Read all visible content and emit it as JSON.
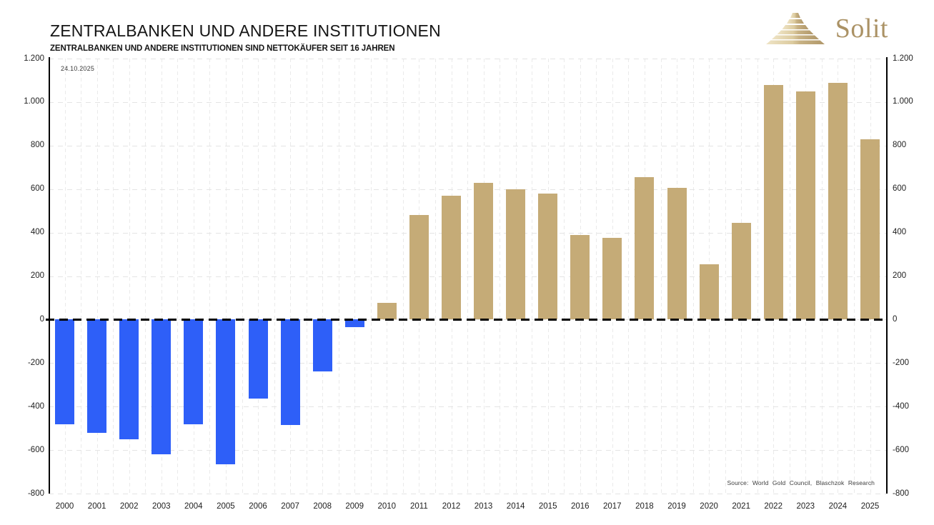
{
  "header": {
    "title": "ZENTRALBANKEN UND ANDERE INSTITUTIONEN",
    "subtitle": "ZENTRALBANKEN UND ANDERE INSTITUTIONEN SIND NETTOKÄUFER SEIT 16 JAHREN",
    "logo": {
      "text": "Solit",
      "icon": "stepped-pyramid-icon",
      "text_color": "#ab9265"
    }
  },
  "annotations": {
    "date_label": "24.10.2025",
    "source_label": "Source: World Gold Council, Blaschzok Research"
  },
  "chart_data": {
    "type": "bar",
    "title": "ZENTRALBANKEN UND ANDERE INSTITUTIONEN",
    "subtitle": "ZENTRALBANKEN UND ANDERE INSTITUTIONEN SIND NETTOKÄUFER SEIT 16 JAHREN",
    "categories": [
      "2000",
      "2001",
      "2002",
      "2003",
      "2004",
      "2005",
      "2006",
      "2007",
      "2008",
      "2009",
      "2010",
      "2011",
      "2012",
      "2013",
      "2014",
      "2015",
      "2016",
      "2017",
      "2018",
      "2019",
      "2020",
      "2021",
      "2022",
      "2023",
      "2024",
      "2025"
    ],
    "values": [
      -480,
      -520,
      -550,
      -620,
      -480,
      -665,
      -365,
      -485,
      -240,
      -35,
      77,
      480,
      570,
      630,
      600,
      580,
      390,
      375,
      655,
      605,
      255,
      445,
      1080,
      1050,
      1090,
      830
    ],
    "ylim": [
      -800,
      1200
    ],
    "ytick_step": 200,
    "ytick_labels": [
      "1.200",
      "1.000",
      "800",
      "600",
      "400",
      "200",
      "0",
      "-200",
      "-400",
      "-600",
      "-800"
    ],
    "grid": true,
    "zero_line": "black-dashed",
    "legend_position": "none",
    "axes": {
      "left_mirror_right": true
    },
    "colors": {
      "positive_bar": "#c5ab77",
      "negative_bar": "#2e5ff8",
      "grid": "#e4e4e4",
      "zero_line": "#000000"
    }
  }
}
